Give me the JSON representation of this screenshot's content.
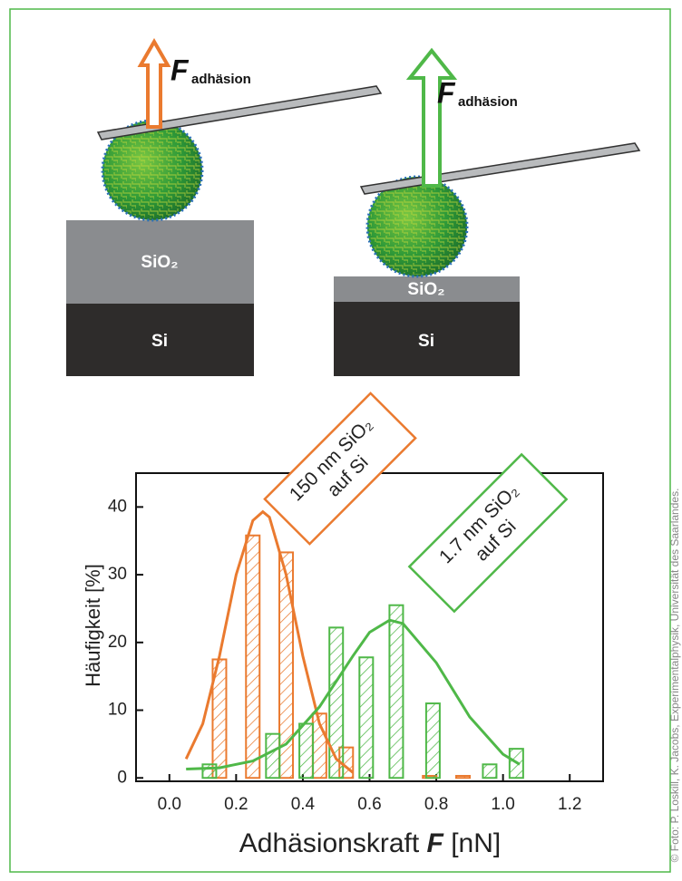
{
  "chart_data": {
    "type": "bar",
    "ylabel": "Häufigkeit [%]",
    "xlabel": {
      "text": "Adhäsionskraft",
      "symbol": "F",
      "unit": "[nN]"
    },
    "xlim": [
      -0.1,
      1.3
    ],
    "xticks": [
      {
        "value": 0,
        "label": "0.0"
      },
      0.2,
      0.4,
      0.6,
      0.8,
      {
        "value": 1,
        "label": "1.0"
      },
      1.2
    ],
    "ylim": [
      -0.5,
      45
    ],
    "yticks": [
      0,
      10,
      20,
      30,
      40
    ],
    "series": [
      {
        "name": "150 nm SiO₂ auf Si",
        "type": "bar",
        "color": "#ea7a2f",
        "x": [
          0.15,
          0.25,
          0.35,
          0.45,
          0.53,
          0.78,
          0.88
        ],
        "values": [
          17.5,
          35.8,
          33.3,
          9.5,
          4.5,
          0.3,
          0.3
        ]
      },
      {
        "name": "1.7 nm SiO₂ auf Si",
        "type": "bar",
        "color": "#4fb848",
        "x": [
          0.12,
          0.31,
          0.41,
          0.5,
          0.59,
          0.68,
          0.79,
          0.96,
          1.04
        ],
        "values": [
          2,
          6.5,
          8,
          22.2,
          17.8,
          25.5,
          11,
          2,
          4.3
        ]
      },
      {
        "type": "line",
        "color": "#ea7a2f",
        "x": [
          0.05,
          0.1,
          0.15,
          0.2,
          0.25,
          0.28,
          0.3,
          0.35,
          0.4,
          0.45,
          0.5,
          0.55
        ],
        "values": [
          2.8,
          8,
          18,
          30,
          38,
          39.3,
          38.5,
          30,
          18,
          8,
          2.8,
          0.8
        ]
      },
      {
        "type": "line",
        "color": "#4fb848",
        "x": [
          0.05,
          0.15,
          0.25,
          0.35,
          0.45,
          0.55,
          0.6,
          0.66,
          0.7,
          0.8,
          0.9,
          1.0,
          1.05
        ],
        "values": [
          1.3,
          1.5,
          2.5,
          5,
          10.5,
          18,
          21.5,
          23.3,
          22.8,
          17,
          9,
          3.5,
          2
        ]
      }
    ],
    "annotations": [
      {
        "lines": [
          "150 nm SiO₂",
          "auf Si"
        ],
        "color": "#ea7a2f"
      },
      {
        "lines": [
          "1.7 nm SiO₂",
          "auf Si"
        ],
        "color": "#4fb848"
      }
    ]
  },
  "diagram": {
    "left": {
      "force": "F",
      "force_sub": "adhäsion",
      "oxide": "SiO₂",
      "substrate": "Si"
    },
    "right": {
      "force": "F",
      "force_sub": "adhäsion",
      "oxide": "SiO₂",
      "substrate": "Si"
    }
  },
  "credit": "© Foto: P. Loskill, K. Jacobs, Experimentalphysik, Universität des Saarlandes."
}
